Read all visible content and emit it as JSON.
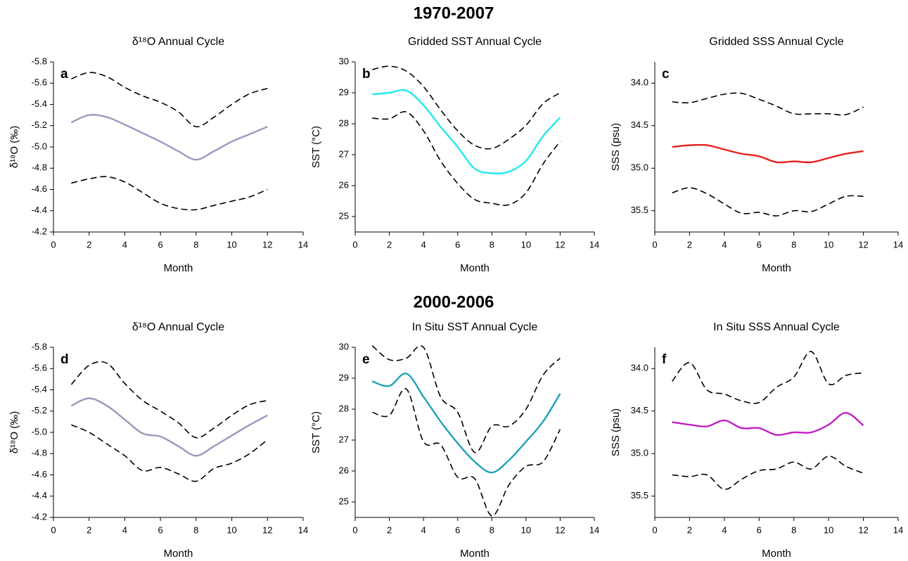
{
  "headings": [
    "1970-2007",
    "2000-2006"
  ],
  "chart_data": [
    {
      "type": "line",
      "panel_label": "a",
      "title": "δ¹⁸O Annual Cycle",
      "x_label": "Month",
      "y_label": "δ¹⁸O (‰)",
      "x": [
        1,
        2,
        3,
        4,
        5,
        6,
        7,
        8,
        9,
        10,
        11,
        12
      ],
      "xlim": [
        0,
        14
      ],
      "xticks": [
        0,
        2,
        4,
        6,
        8,
        10,
        12,
        14
      ],
      "ylim": [
        -4.2,
        -5.8
      ],
      "yticks": [
        -5.8,
        -5.6,
        -5.4,
        -5.2,
        {
          "value": -5,
          "label": "-5.0"
        },
        -4.8,
        -4.6,
        -4.4,
        -4.2
      ],
      "series": [
        {
          "color": "#9a98bb",
          "dashed": false,
          "values": [
            -5.23,
            -5.3,
            -5.28,
            -5.21,
            -5.13,
            -5.05,
            -4.96,
            -4.88,
            -4.96,
            -5.05,
            -5.12,
            -5.19
          ]
        },
        {
          "color": "#000000",
          "dashed": true,
          "values": [
            -5.64,
            -5.7,
            -5.66,
            -5.56,
            -5.48,
            -5.42,
            -5.33,
            -5.19,
            -5.28,
            -5.4,
            -5.5,
            -5.55
          ]
        },
        {
          "color": "#000000",
          "dashed": true,
          "values": [
            -4.66,
            -4.7,
            -4.72,
            -4.67,
            -4.57,
            -4.47,
            -4.42,
            -4.41,
            -4.45,
            -4.49,
            -4.53,
            -4.6
          ]
        }
      ]
    },
    {
      "type": "line",
      "panel_label": "b",
      "title": "Gridded SST Annual Cycle",
      "x_label": "Month",
      "y_label": "SST (°C)",
      "x": [
        1,
        2,
        3,
        4,
        5,
        6,
        7,
        8,
        9,
        10,
        11,
        12
      ],
      "xlim": [
        0,
        14
      ],
      "xticks": [
        0,
        2,
        4,
        6,
        8,
        10,
        12,
        14
      ],
      "ylim": [
        24.5,
        30
      ],
      "yticks": [
        25,
        26,
        27,
        28,
        29,
        30
      ],
      "series": [
        {
          "color": "#22e8ee",
          "dashed": false,
          "values": [
            28.95,
            29.0,
            29.07,
            28.6,
            27.9,
            27.25,
            26.55,
            26.4,
            26.45,
            26.8,
            27.6,
            28.2
          ]
        },
        {
          "color": "#000000",
          "dashed": true,
          "values": [
            29.75,
            29.86,
            29.7,
            29.2,
            28.45,
            27.77,
            27.3,
            27.2,
            27.5,
            27.95,
            28.65,
            29.0
          ]
        },
        {
          "color": "#000000",
          "dashed": true,
          "values": [
            28.18,
            28.16,
            28.38,
            27.77,
            26.8,
            26.07,
            25.55,
            25.43,
            25.38,
            25.77,
            26.7,
            27.43
          ]
        }
      ]
    },
    {
      "type": "line",
      "panel_label": "c",
      "title": "Gridded SSS Annual Cycle",
      "x_label": "Month",
      "y_label": "SSS (psu)",
      "x": [
        1,
        2,
        3,
        4,
        5,
        6,
        7,
        8,
        9,
        10,
        11,
        12
      ],
      "xlim": [
        0,
        14
      ],
      "xticks": [
        0,
        2,
        4,
        6,
        8,
        10,
        12,
        14
      ],
      "ylim": [
        35.75,
        33.75
      ],
      "yticks": [
        {
          "value": 34,
          "label": "34.0"
        },
        34.5,
        {
          "value": 35,
          "label": "35.0"
        },
        35.5
      ],
      "series": [
        {
          "color": "#e8201c",
          "dashed": false,
          "values": [
            34.75,
            34.73,
            34.73,
            34.78,
            34.83,
            34.86,
            34.93,
            34.92,
            34.93,
            34.88,
            34.83,
            34.8
          ]
        },
        {
          "color": "#000000",
          "dashed": true,
          "values": [
            34.22,
            34.23,
            34.18,
            34.13,
            34.12,
            34.19,
            34.27,
            34.36,
            34.36,
            34.36,
            34.37,
            34.28
          ]
        },
        {
          "color": "#000000",
          "dashed": true,
          "values": [
            35.29,
            35.23,
            35.3,
            35.42,
            35.53,
            35.52,
            35.56,
            35.5,
            35.51,
            35.42,
            35.33,
            35.33
          ]
        }
      ]
    },
    {
      "type": "line",
      "panel_label": "d",
      "title": "δ¹⁸O Annual Cycle",
      "x_label": "Month",
      "y_label": "δ¹⁸O (‰)",
      "x": [
        1,
        2,
        3,
        4,
        5,
        6,
        7,
        8,
        9,
        10,
        11,
        12
      ],
      "xlim": [
        0,
        14
      ],
      "xticks": [
        0,
        2,
        4,
        6,
        8,
        10,
        12,
        14
      ],
      "ylim": [
        -4.2,
        -5.8
      ],
      "yticks": [
        -5.8,
        -5.6,
        -5.4,
        -5.2,
        {
          "value": -5,
          "label": "-5.0"
        },
        -4.8,
        -4.6,
        -4.4,
        -4.2
      ],
      "series": [
        {
          "color": "#9a98bb",
          "dashed": false,
          "values": [
            -5.25,
            -5.32,
            -5.25,
            -5.12,
            -4.99,
            -4.96,
            -4.87,
            -4.78,
            -4.87,
            -4.97,
            -5.07,
            -5.16
          ]
        },
        {
          "color": "#000000",
          "dashed": true,
          "values": [
            -5.45,
            -5.63,
            -5.65,
            -5.46,
            -5.3,
            -5.2,
            -5.09,
            -4.95,
            -5.04,
            -5.16,
            -5.26,
            -5.3
          ]
        },
        {
          "color": "#000000",
          "dashed": true,
          "values": [
            -5.07,
            -5.0,
            -4.89,
            -4.78,
            -4.64,
            -4.67,
            -4.61,
            -4.54,
            -4.66,
            -4.71,
            -4.8,
            -4.93
          ]
        }
      ]
    },
    {
      "type": "line",
      "panel_label": "e",
      "title": "In Situ SST Annual Cycle",
      "x_label": "Month",
      "y_label": "SST (°C)",
      "x": [
        1,
        2,
        3,
        4,
        5,
        6,
        7,
        8,
        9,
        10,
        11,
        12
      ],
      "xlim": [
        0,
        14
      ],
      "xticks": [
        0,
        2,
        4,
        6,
        8,
        10,
        12,
        14
      ],
      "ylim": [
        24.5,
        30
      ],
      "yticks": [
        25,
        26,
        27,
        28,
        29,
        30
      ],
      "series": [
        {
          "color": "#1ba3b8",
          "dashed": false,
          "values": [
            28.9,
            28.75,
            29.15,
            28.4,
            27.6,
            26.9,
            26.3,
            25.95,
            26.35,
            26.95,
            27.6,
            28.5
          ]
        },
        {
          "color": "#000000",
          "dashed": true,
          "values": [
            30.05,
            29.6,
            29.65,
            30.0,
            28.4,
            27.9,
            26.6,
            27.45,
            27.45,
            28.0,
            29.1,
            29.65
          ]
        },
        {
          "color": "#000000",
          "dashed": true,
          "values": [
            27.9,
            27.8,
            28.65,
            26.95,
            26.85,
            25.8,
            25.75,
            24.55,
            25.55,
            26.15,
            26.3,
            27.35
          ]
        }
      ]
    },
    {
      "type": "line",
      "panel_label": "f",
      "title": "In Situ SSS Annual Cycle",
      "x_label": "Month",
      "y_label": "SSS (psu)",
      "x": [
        1,
        2,
        3,
        4,
        5,
        6,
        7,
        8,
        9,
        10,
        11,
        12
      ],
      "xlim": [
        0,
        14
      ],
      "xticks": [
        0,
        2,
        4,
        6,
        8,
        10,
        12,
        14
      ],
      "ylim": [
        35.75,
        33.75
      ],
      "yticks": [
        {
          "value": 34,
          "label": "34.0"
        },
        34.5,
        {
          "value": 35,
          "label": "35.0"
        },
        35.5
      ],
      "series": [
        {
          "color": "#c11fc4",
          "dashed": false,
          "values": [
            34.63,
            34.66,
            34.68,
            34.61,
            34.7,
            34.7,
            34.78,
            34.75,
            34.75,
            34.66,
            34.52,
            34.67
          ]
        },
        {
          "color": "#000000",
          "dashed": true,
          "values": [
            34.15,
            33.93,
            34.25,
            34.3,
            34.38,
            34.4,
            34.22,
            34.1,
            33.8,
            34.18,
            34.08,
            34.05
          ]
        },
        {
          "color": "#000000",
          "dashed": true,
          "values": [
            35.25,
            35.27,
            35.25,
            35.42,
            35.3,
            35.2,
            35.18,
            35.1,
            35.18,
            35.03,
            35.15,
            35.23
          ]
        }
      ]
    }
  ]
}
